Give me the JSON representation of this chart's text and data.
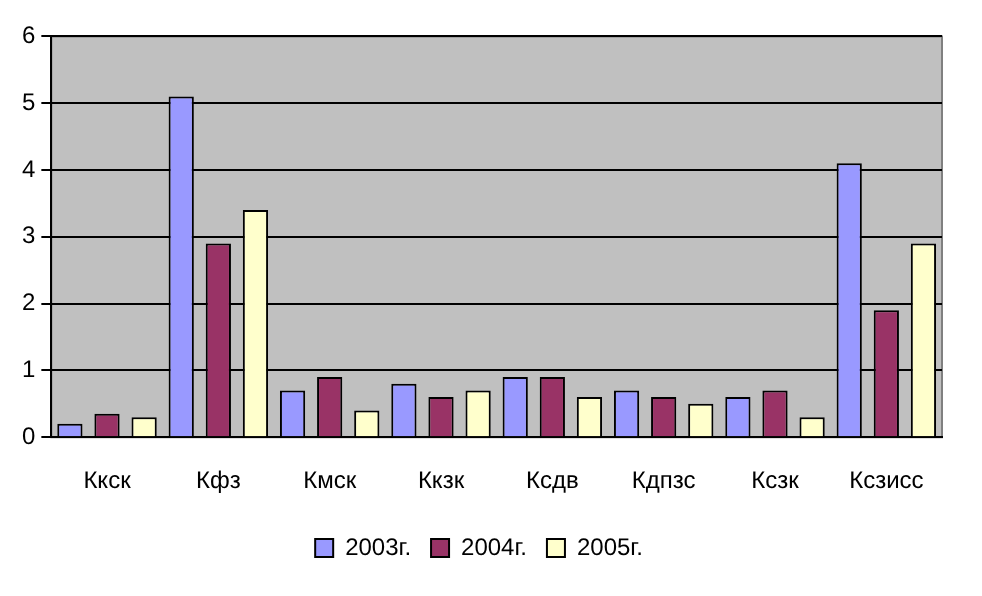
{
  "chart_data": {
    "type": "bar",
    "categories": [
      "Ккск",
      "Кфз",
      "Кмск",
      "Ккзк",
      "Ксдв",
      "Кдпзс",
      "Ксзк",
      "Ксзисс"
    ],
    "series": [
      {
        "name": "2003г.",
        "color": "#9999ff",
        "values": [
          0.2,
          5.1,
          0.7,
          0.8,
          0.9,
          0.7,
          0.6,
          4.1
        ]
      },
      {
        "name": "2004г.",
        "color": "#993366",
        "values": [
          0.35,
          2.9,
          0.9,
          0.6,
          0.9,
          0.6,
          0.7,
          1.9
        ]
      },
      {
        "name": "2005г.",
        "color": "#ffffcc",
        "values": [
          0.3,
          3.4,
          0.4,
          0.7,
          0.6,
          0.5,
          0.3,
          2.9
        ]
      }
    ],
    "ylim": [
      0,
      6
    ],
    "yticks": [
      0,
      1,
      2,
      3,
      4,
      5,
      6
    ],
    "grid": "y",
    "legend": "bottom"
  }
}
